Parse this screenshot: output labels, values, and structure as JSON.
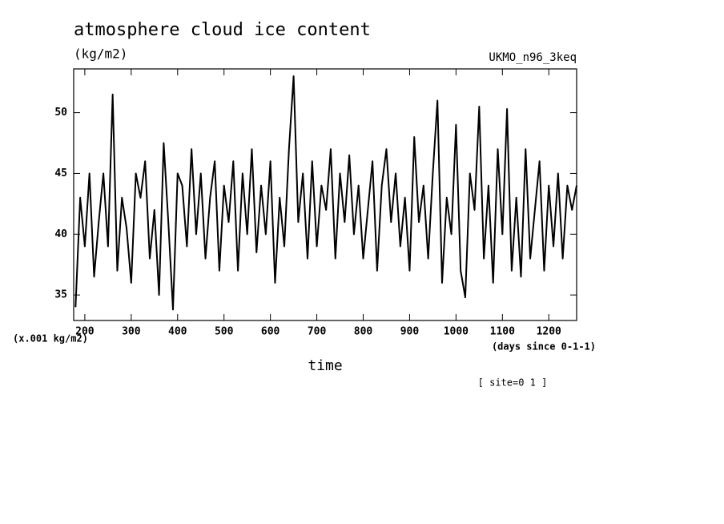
{
  "chart_data": {
    "type": "line",
    "title": "atmosphere cloud ice content",
    "units": "(kg/m2)",
    "model": "UKMO_n96_3keq",
    "ylabel": "(x.001 kg/m2)",
    "xunits": "(days since 0-1-1)",
    "xlabel": "time",
    "annotation": "[ site=0 1 ]",
    "x": [
      180,
      190,
      200,
      210,
      220,
      230,
      240,
      250,
      260,
      270,
      280,
      290,
      300,
      310,
      320,
      330,
      340,
      350,
      360,
      370,
      380,
      390,
      400,
      410,
      420,
      430,
      440,
      450,
      460,
      470,
      480,
      490,
      500,
      510,
      520,
      530,
      540,
      550,
      560,
      570,
      580,
      590,
      600,
      610,
      620,
      630,
      640,
      650,
      660,
      670,
      680,
      690,
      700,
      710,
      720,
      730,
      740,
      750,
      760,
      770,
      780,
      790,
      800,
      810,
      820,
      830,
      840,
      850,
      860,
      870,
      880,
      890,
      900,
      910,
      920,
      930,
      940,
      950,
      960,
      970,
      980,
      990,
      1000,
      1010,
      1020,
      1030,
      1040,
      1050,
      1060,
      1070,
      1080,
      1090,
      1100,
      1110,
      1120,
      1130,
      1140,
      1150,
      1160,
      1170,
      1180,
      1190,
      1200,
      1210,
      1220,
      1230,
      1240,
      1250,
      1260
    ],
    "series": [
      {
        "color": "#000000",
        "values": [
          34,
          43,
          39,
          45,
          36.5,
          41,
          45,
          39,
          51.5,
          37,
          43,
          40.5,
          36,
          45,
          43,
          46,
          38,
          42,
          35,
          47.5,
          41,
          33.8,
          45,
          44,
          39,
          47,
          40,
          45,
          38,
          43,
          46,
          37,
          44,
          41,
          46,
          37,
          45,
          40,
          47,
          38.5,
          44,
          40,
          46,
          36,
          43,
          39,
          47,
          53,
          41,
          45,
          38,
          46,
          39,
          44,
          42,
          47,
          38,
          45,
          41,
          46.5,
          40,
          44,
          38,
          42,
          46,
          37,
          44,
          47,
          41,
          45,
          39,
          43,
          37,
          48,
          41,
          44,
          38,
          45,
          51,
          36,
          43,
          40,
          49,
          37,
          34.8,
          45,
          42,
          50.5,
          38,
          44,
          36,
          47,
          40,
          50.3,
          37,
          43,
          36.5,
          47,
          38,
          42,
          46,
          37,
          44,
          39,
          45,
          38,
          44,
          42,
          44
        ]
      }
    ],
    "xlim": [
      176,
      1260
    ],
    "ylim": [
      32.9,
      53.6
    ],
    "xticks": [
      200,
      300,
      400,
      500,
      600,
      700,
      800,
      900,
      1000,
      1100,
      1200
    ],
    "yticks": [
      35,
      40,
      45,
      50
    ]
  }
}
